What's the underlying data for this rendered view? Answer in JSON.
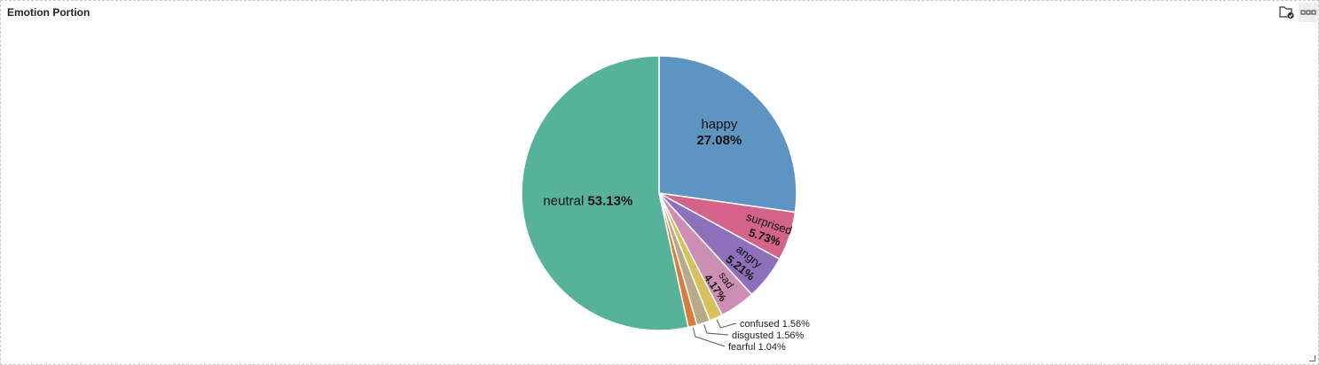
{
  "panel": {
    "title": "Emotion Portion",
    "toolbar": {
      "save_icon": "folder-check-icon",
      "more_icon": "more-horizontal-icon"
    }
  },
  "chart_data": {
    "type": "pie",
    "title": "Emotion Portion",
    "slices": [
      {
        "label": "happy",
        "value": 27.08,
        "display": "27.08%",
        "color": "#5e94c2"
      },
      {
        "label": "surprised",
        "value": 5.73,
        "display": "5.73%",
        "color": "#d4638a"
      },
      {
        "label": "angry",
        "value": 5.21,
        "display": "5.21%",
        "color": "#8d6fba"
      },
      {
        "label": "sad",
        "value": 4.17,
        "display": "4.17%",
        "color": "#cc8fb3"
      },
      {
        "label": "confused",
        "value": 1.56,
        "display": "1.56%",
        "color": "#d8c15c"
      },
      {
        "label": "disgusted",
        "value": 1.56,
        "display": "1.56%",
        "color": "#b9a88a"
      },
      {
        "label": "fearful",
        "value": 1.04,
        "display": "1.04%",
        "color": "#d67d3e"
      },
      {
        "label": "neutral",
        "value": 53.13,
        "display": "53.13%",
        "color": "#56b399"
      }
    ],
    "start_angle": "12 o'clock",
    "direction": "clockwise"
  }
}
